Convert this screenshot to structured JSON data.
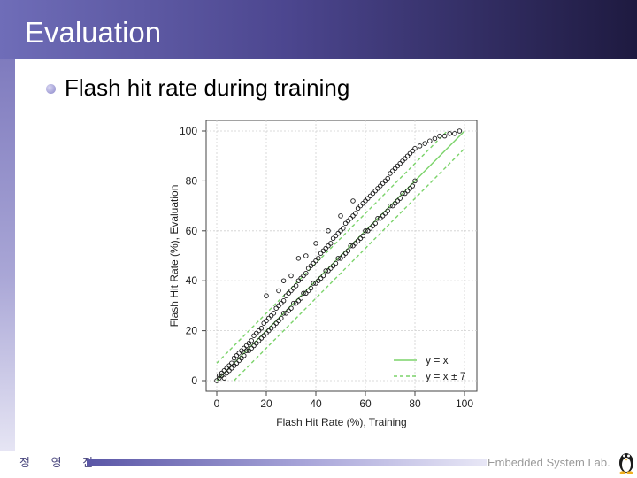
{
  "slide": {
    "title": "Evaluation",
    "bullet": "Flash hit rate during training",
    "footer_left": "정 영 진",
    "footer_right": "Embedded System Lab."
  },
  "colors": {
    "title_bar_start": "#6f6db8",
    "title_bar_end": "#1e1a40",
    "accent": "#5a56a6",
    "fit_line": "#7bd36a"
  },
  "chart_data": {
    "type": "scatter",
    "title": "",
    "xlabel": "Flash Hit Rate (%), Training",
    "ylabel": "Flash Hit Rate (%), Evaluation",
    "xlim": [
      0,
      100
    ],
    "ylim": [
      0,
      100
    ],
    "xticks": [
      0,
      20,
      40,
      60,
      80,
      100
    ],
    "yticks": [
      0,
      20,
      40,
      60,
      80,
      100
    ],
    "grid": true,
    "legend": {
      "position": "bottom-right",
      "entries": [
        {
          "label": "y = x",
          "style": "solid"
        },
        {
          "label": "y = x ± 7",
          "style": "dashed"
        }
      ]
    },
    "reference_lines": [
      {
        "name": "y = x",
        "offset": 0,
        "style": "solid"
      },
      {
        "name": "y = x + 7",
        "offset": 7,
        "style": "dashed"
      },
      {
        "name": "y = x - 7",
        "offset": -7,
        "style": "dashed"
      }
    ],
    "points": [
      [
        0,
        0
      ],
      [
        1,
        1
      ],
      [
        1,
        2
      ],
      [
        2,
        2
      ],
      [
        2,
        3
      ],
      [
        3,
        1
      ],
      [
        3,
        4
      ],
      [
        4,
        5
      ],
      [
        4,
        3
      ],
      [
        5,
        6
      ],
      [
        5,
        4
      ],
      [
        6,
        7
      ],
      [
        6,
        5
      ],
      [
        7,
        9
      ],
      [
        7,
        6
      ],
      [
        8,
        10
      ],
      [
        8,
        7
      ],
      [
        9,
        11
      ],
      [
        9,
        8
      ],
      [
        10,
        12
      ],
      [
        10,
        9
      ],
      [
        11,
        13
      ],
      [
        11,
        10
      ],
      [
        12,
        14
      ],
      [
        12,
        12
      ],
      [
        13,
        15
      ],
      [
        13,
        12
      ],
      [
        14,
        16
      ],
      [
        14,
        13
      ],
      [
        15,
        18
      ],
      [
        15,
        14
      ],
      [
        16,
        19
      ],
      [
        16,
        15
      ],
      [
        17,
        20
      ],
      [
        17,
        16
      ],
      [
        18,
        21
      ],
      [
        18,
        17
      ],
      [
        19,
        23
      ],
      [
        19,
        18
      ],
      [
        20,
        24
      ],
      [
        20,
        19
      ],
      [
        21,
        25
      ],
      [
        21,
        20
      ],
      [
        22,
        26
      ],
      [
        22,
        21
      ],
      [
        23,
        27
      ],
      [
        23,
        22
      ],
      [
        24,
        29
      ],
      [
        24,
        23
      ],
      [
        25,
        30
      ],
      [
        25,
        24
      ],
      [
        26,
        31
      ],
      [
        26,
        25
      ],
      [
        27,
        32
      ],
      [
        27,
        27
      ],
      [
        28,
        34
      ],
      [
        28,
        27
      ],
      [
        29,
        35
      ],
      [
        29,
        28
      ],
      [
        30,
        36
      ],
      [
        30,
        29
      ],
      [
        31,
        37
      ],
      [
        31,
        31
      ],
      [
        32,
        38
      ],
      [
        32,
        31
      ],
      [
        33,
        40
      ],
      [
        33,
        32
      ],
      [
        34,
        41
      ],
      [
        34,
        33
      ],
      [
        35,
        42
      ],
      [
        35,
        35
      ],
      [
        36,
        43
      ],
      [
        36,
        35
      ],
      [
        37,
        45
      ],
      [
        37,
        36
      ],
      [
        38,
        46
      ],
      [
        38,
        37
      ],
      [
        39,
        47
      ],
      [
        39,
        39
      ],
      [
        40,
        48
      ],
      [
        40,
        39
      ],
      [
        41,
        49
      ],
      [
        41,
        40
      ],
      [
        42,
        51
      ],
      [
        42,
        41
      ],
      [
        43,
        52
      ],
      [
        43,
        42
      ],
      [
        44,
        53
      ],
      [
        44,
        44
      ],
      [
        45,
        54
      ],
      [
        45,
        44
      ],
      [
        46,
        55
      ],
      [
        46,
        45
      ],
      [
        47,
        57
      ],
      [
        47,
        46
      ],
      [
        48,
        58
      ],
      [
        48,
        47
      ],
      [
        49,
        59
      ],
      [
        49,
        49
      ],
      [
        50,
        60
      ],
      [
        50,
        49
      ],
      [
        51,
        61
      ],
      [
        51,
        50
      ],
      [
        52,
        63
      ],
      [
        52,
        51
      ],
      [
        53,
        64
      ],
      [
        53,
        52
      ],
      [
        54,
        65
      ],
      [
        54,
        54
      ],
      [
        55,
        66
      ],
      [
        55,
        54
      ],
      [
        56,
        67
      ],
      [
        56,
        55
      ],
      [
        57,
        69
      ],
      [
        57,
        56
      ],
      [
        58,
        70
      ],
      [
        58,
        57
      ],
      [
        59,
        71
      ],
      [
        59,
        58
      ],
      [
        60,
        72
      ],
      [
        60,
        60
      ],
      [
        61,
        73
      ],
      [
        61,
        60
      ],
      [
        62,
        74
      ],
      [
        62,
        61
      ],
      [
        63,
        75
      ],
      [
        63,
        62
      ],
      [
        64,
        76
      ],
      [
        64,
        63
      ],
      [
        65,
        77
      ],
      [
        65,
        65
      ],
      [
        66,
        78
      ],
      [
        66,
        65
      ],
      [
        67,
        79
      ],
      [
        67,
        66
      ],
      [
        68,
        80
      ],
      [
        68,
        67
      ],
      [
        69,
        81
      ],
      [
        69,
        68
      ],
      [
        70,
        83
      ],
      [
        70,
        70
      ],
      [
        71,
        84
      ],
      [
        71,
        70
      ],
      [
        72,
        85
      ],
      [
        72,
        71
      ],
      [
        73,
        86
      ],
      [
        73,
        72
      ],
      [
        74,
        87
      ],
      [
        74,
        73
      ],
      [
        75,
        88
      ],
      [
        75,
        75
      ],
      [
        76,
        89
      ],
      [
        76,
        75
      ],
      [
        77,
        90
      ],
      [
        77,
        76
      ],
      [
        78,
        91
      ],
      [
        78,
        77
      ],
      [
        79,
        92
      ],
      [
        79,
        78
      ],
      [
        80,
        93
      ],
      [
        80,
        80
      ],
      [
        82,
        94
      ],
      [
        84,
        95
      ],
      [
        86,
        96
      ],
      [
        88,
        97
      ],
      [
        90,
        98
      ],
      [
        92,
        98
      ],
      [
        94,
        99
      ],
      [
        96,
        99
      ],
      [
        98,
        100
      ],
      [
        27,
        40
      ],
      [
        33,
        49
      ],
      [
        20,
        34
      ],
      [
        30,
        42
      ],
      [
        25,
        36
      ],
      [
        36,
        50
      ],
      [
        40,
        55
      ],
      [
        45,
        60
      ],
      [
        50,
        66
      ],
      [
        55,
        72
      ]
    ]
  }
}
